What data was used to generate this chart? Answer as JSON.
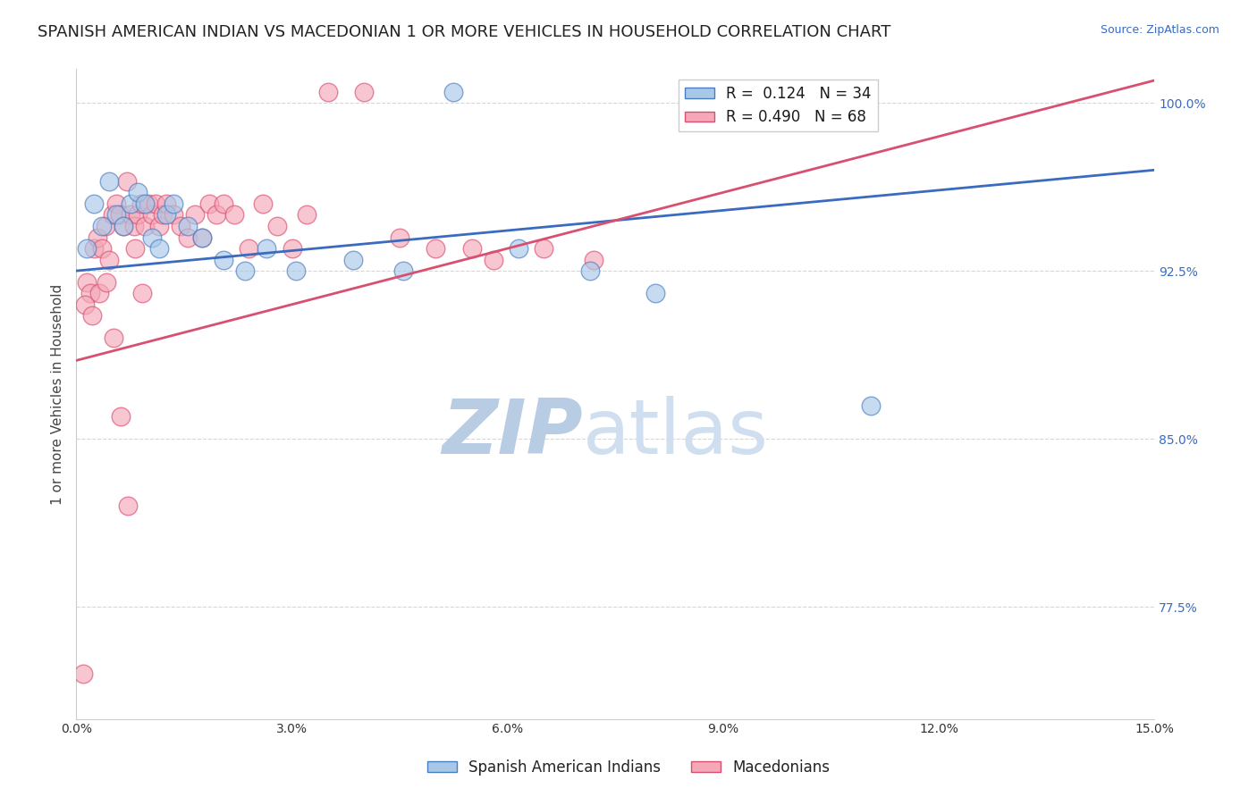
{
  "title": "SPANISH AMERICAN INDIAN VS MACEDONIAN 1 OR MORE VEHICLES IN HOUSEHOLD CORRELATION CHART",
  "source_text": "Source: ZipAtlas.com",
  "ylabel": "1 or more Vehicles in Household",
  "xmin": 0.0,
  "xmax": 15.0,
  "ymin": 72.5,
  "ymax": 101.5,
  "yticks": [
    77.5,
    85.0,
    92.5,
    100.0
  ],
  "xticks": [
    0.0,
    3.0,
    6.0,
    9.0,
    12.0,
    15.0
  ],
  "xtick_labels": [
    "0.0%",
    "3.0%",
    "6.0%",
    "9.0%",
    "12.0%",
    "15.0%"
  ],
  "ytick_labels": [
    "77.5%",
    "85.0%",
    "92.5%",
    "100.0%"
  ],
  "blue_color": "#a8c8e8",
  "pink_color": "#f4a8b8",
  "blue_edge_color": "#4a7cc0",
  "pink_edge_color": "#d85070",
  "blue_line_color": "#3a6bbf",
  "pink_line_color": "#d85070",
  "r_blue": 0.124,
  "n_blue": 34,
  "r_pink": 0.49,
  "n_pink": 68,
  "legend_label_blue": "Spanish American Indians",
  "legend_label_pink": "Macedonians",
  "blue_x": [
    0.15,
    0.25,
    0.35,
    0.45,
    0.55,
    0.65,
    0.75,
    0.85,
    0.95,
    1.05,
    1.15,
    1.25,
    1.35,
    1.55,
    1.75,
    2.05,
    2.35,
    2.65,
    3.05,
    3.85,
    4.55,
    5.25,
    6.15,
    7.15,
    8.05,
    11.05
  ],
  "blue_y": [
    93.5,
    95.5,
    94.5,
    96.5,
    95.0,
    94.5,
    95.5,
    96.0,
    95.5,
    94.0,
    93.5,
    95.0,
    95.5,
    94.5,
    94.0,
    93.0,
    92.5,
    93.5,
    92.5,
    93.0,
    92.5,
    100.5,
    93.5,
    92.5,
    91.5,
    86.5
  ],
  "pink_x": [
    0.1,
    0.15,
    0.2,
    0.25,
    0.3,
    0.35,
    0.4,
    0.45,
    0.5,
    0.55,
    0.6,
    0.65,
    0.7,
    0.75,
    0.8,
    0.85,
    0.9,
    0.95,
    1.0,
    1.05,
    1.1,
    1.15,
    1.2,
    1.25,
    1.35,
    1.45,
    1.55,
    1.65,
    1.75,
    1.85,
    1.95,
    2.05,
    2.2,
    2.4,
    2.6,
    2.8,
    3.0,
    3.2,
    3.5,
    4.0,
    4.5,
    5.0,
    5.5,
    5.8,
    6.5,
    7.2,
    0.12,
    0.22,
    0.32,
    0.42,
    0.52,
    0.62,
    0.72,
    0.82,
    0.92
  ],
  "pink_y": [
    74.5,
    92.0,
    91.5,
    93.5,
    94.0,
    93.5,
    94.5,
    93.0,
    95.0,
    95.5,
    95.0,
    94.5,
    96.5,
    95.0,
    94.5,
    95.0,
    95.5,
    94.5,
    95.5,
    95.0,
    95.5,
    94.5,
    95.0,
    95.5,
    95.0,
    94.5,
    94.0,
    95.0,
    94.0,
    95.5,
    95.0,
    95.5,
    95.0,
    93.5,
    95.5,
    94.5,
    93.5,
    95.0,
    100.5,
    100.5,
    94.0,
    93.5,
    93.5,
    93.0,
    93.5,
    93.0,
    91.0,
    90.5,
    91.5,
    92.0,
    89.5,
    86.0,
    82.0,
    93.5,
    91.5
  ],
  "blue_line_x0": 0.0,
  "blue_line_x1": 15.0,
  "blue_line_y0": 92.5,
  "blue_line_y1": 97.0,
  "pink_line_x0": 0.0,
  "pink_line_x1": 15.0,
  "pink_line_y0": 88.5,
  "pink_line_y1": 101.0,
  "watermark_zip": "ZIP",
  "watermark_atlas": "atlas",
  "watermark_color": "#c8d8f0",
  "background_color": "#ffffff",
  "grid_color": "#cccccc",
  "title_fontsize": 13,
  "axis_label_fontsize": 11,
  "tick_fontsize": 10,
  "legend_fontsize": 12
}
